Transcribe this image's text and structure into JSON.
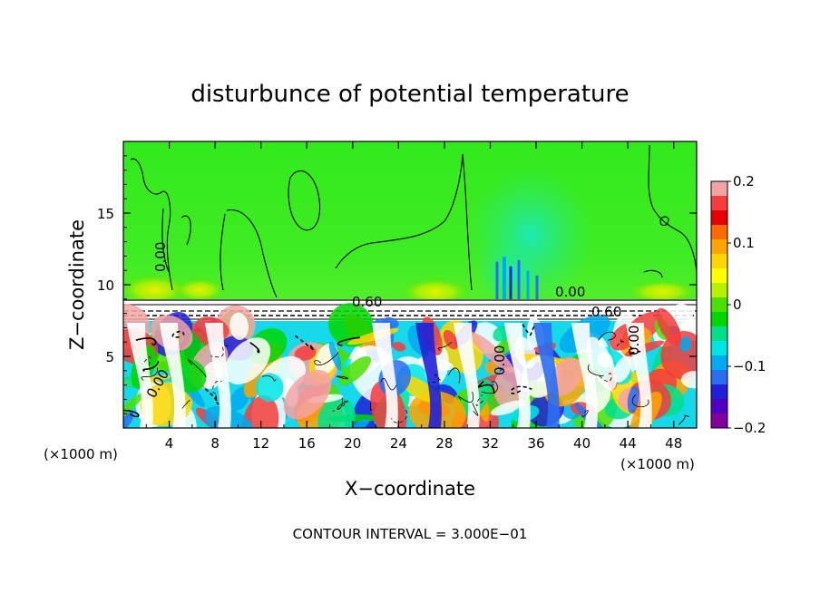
{
  "chart_data": {
    "type": "heatmap",
    "title": "disturbunce of potential temperature",
    "xlabel": "X−coordinate",
    "ylabel": "Z−coordinate",
    "x_unit_left": "(×1000 m)",
    "x_unit_right": "(×1000 m)",
    "footer": "CONTOUR INTERVAL = 3.000E−01",
    "xlim": [
      0,
      50
    ],
    "ylim": [
      0,
      20
    ],
    "x_ticks": [
      "4",
      "8",
      "12",
      "16",
      "20",
      "24",
      "28",
      "32",
      "36",
      "40",
      "44",
      "48"
    ],
    "x_tick_values": [
      4,
      8,
      12,
      16,
      20,
      24,
      28,
      32,
      36,
      40,
      44,
      48
    ],
    "y_ticks": [
      "5",
      "10",
      "15"
    ],
    "y_tick_values": [
      5,
      10,
      15
    ],
    "colorbar": {
      "min": -0.2,
      "max": 0.2,
      "tick_labels": [
        "0.2",
        "0.1",
        "0",
        "−0.1",
        "−0.2"
      ],
      "tick_values": [
        0.2,
        0.1,
        0,
        -0.1,
        -0.2
      ],
      "colors": [
        "#f4a3a3",
        "#f43c3c",
        "#e60000",
        "#ff6a00",
        "#ffa500",
        "#ffd700",
        "#ffff00",
        "#b8f000",
        "#4be000",
        "#00d700",
        "#00e08c",
        "#00e6e6",
        "#00aaf0",
        "#2a6ef0",
        "#2020d8",
        "#5000c0",
        "#8000a0"
      ]
    },
    "contour_labels": [
      "0.60",
      "0.00",
      "0.60",
      "0.00",
      "0.00",
      "0.00",
      "0.00"
    ]
  },
  "colors": {
    "background_upper": "#36ec1e",
    "inversion_band": "#ffffff"
  }
}
